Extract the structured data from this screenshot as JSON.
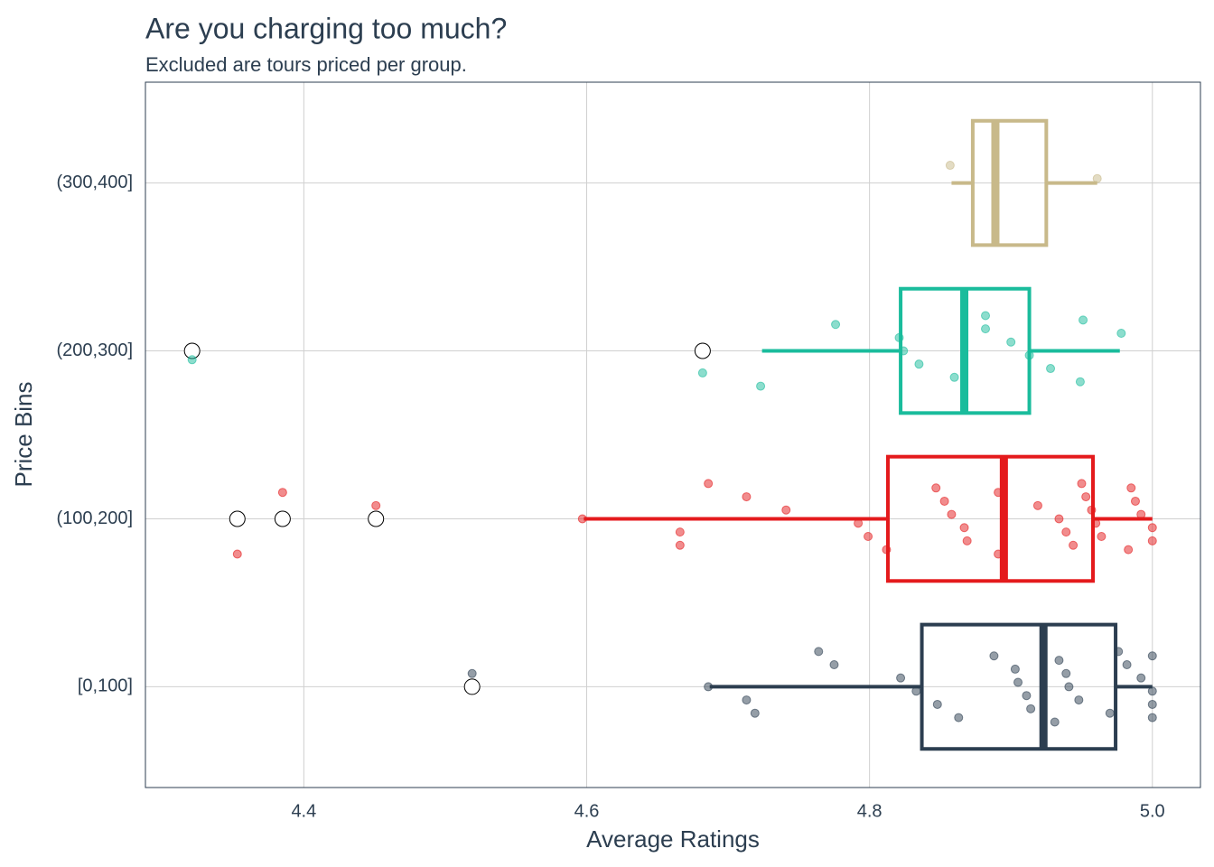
{
  "chart_data": {
    "type": "boxplot",
    "title": "Are you charging too much?",
    "subtitle": "Excluded are tours priced per group.",
    "x_label": "Average Ratings",
    "y_label": "Price Bins",
    "categories": [
      "[0,100]",
      "(100,200]",
      "(200,300]",
      "(300,400]"
    ],
    "colors": [
      "#2c3e50",
      "#e41a1c",
      "#1abc9c",
      "#c8b98a"
    ],
    "whisker_low": [
      4.687,
      4.598,
      4.724,
      4.858
    ],
    "q1": [
      4.837,
      4.813,
      4.822,
      4.873
    ],
    "median": [
      4.923,
      4.895,
      4.867,
      4.889
    ],
    "q3": [
      4.974,
      4.958,
      4.913,
      4.925
    ],
    "whisker_high": [
      5.0,
      5.0,
      4.977,
      4.961
    ],
    "outliers": [
      [
        4.519
      ],
      [
        4.353,
        4.385,
        4.451
      ],
      [
        4.321,
        4.682
      ],
      []
    ],
    "points": [
      [
        4.519,
        4.686,
        4.713,
        4.719,
        4.764,
        4.775,
        4.822,
        4.833,
        4.848,
        4.863,
        4.888,
        4.903,
        4.905,
        4.911,
        4.914,
        4.931,
        4.934,
        4.939,
        4.941,
        4.948,
        4.97,
        4.976,
        4.982,
        4.992,
        5.0,
        5.0,
        5.0,
        5.0
      ],
      [
        4.353,
        4.385,
        4.451,
        4.597,
        4.666,
        4.666,
        4.686,
        4.713,
        4.741,
        4.792,
        4.799,
        4.812,
        4.847,
        4.853,
        4.858,
        4.867,
        4.869,
        4.891,
        4.891,
        4.919,
        4.934,
        4.939,
        4.944,
        4.95,
        4.953,
        4.957,
        4.96,
        4.964,
        4.983,
        4.985,
        4.988,
        4.992,
        5.0,
        5.0
      ],
      [
        4.321,
        4.682,
        4.723,
        4.776,
        4.821,
        4.824,
        4.835,
        4.86,
        4.882,
        4.882,
        4.9,
        4.913,
        4.928,
        4.949,
        4.951,
        4.978
      ],
      [
        4.857,
        4.961
      ]
    ],
    "xlim": [
      4.288,
      5.034
    ],
    "xticks": [
      4.4,
      4.6,
      4.8,
      {
        "value": 5,
        "label": "5.0"
      }
    ],
    "grid": true
  }
}
